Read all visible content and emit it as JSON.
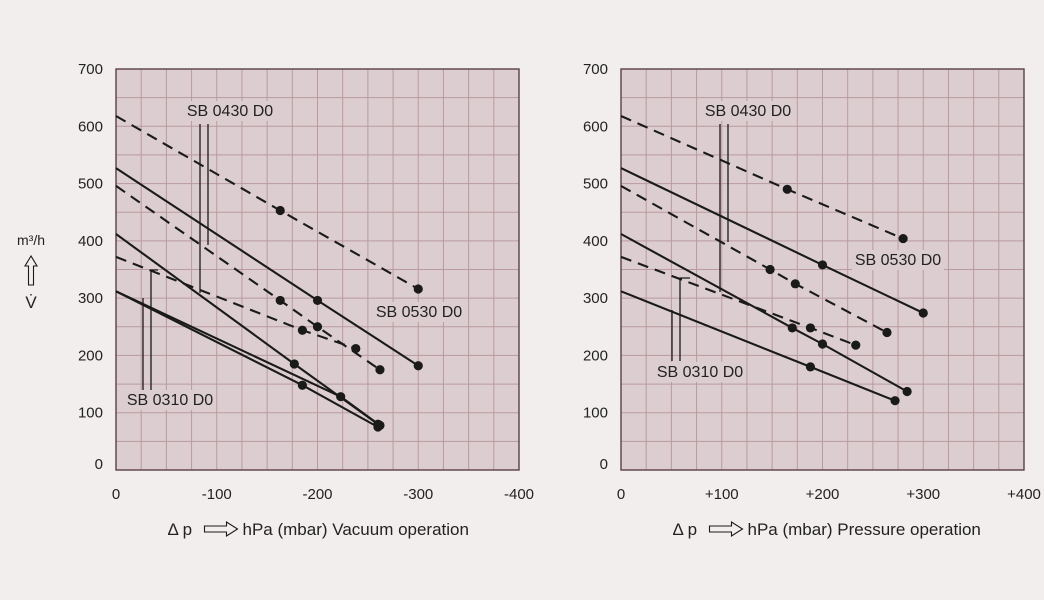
{
  "colors": {
    "background": "#f3eeee",
    "plot_bg": "#dcced0",
    "grid": "#b99aa0",
    "frame": "#5a4045",
    "ink": "#1a1a1a"
  },
  "y_axis": {
    "unit": "m³/h",
    "symbol": "V̇",
    "arrow_icon": "hollow-up-arrow"
  },
  "chart_data": [
    {
      "type": "line",
      "title": "",
      "xlabel": "hPa (mbar) Vacuum operation",
      "xlabel_prefix": "Δ p",
      "ylabel": "m³/h",
      "x_ticks": [
        "0",
        "-100",
        "-200",
        "-300",
        "-400"
      ],
      "y_ticks": [
        "0",
        "100",
        "200",
        "300",
        "400",
        "500",
        "600",
        "700"
      ],
      "xlim": [
        0,
        -400
      ],
      "ylim": [
        0,
        700
      ],
      "grid": true,
      "series": [
        {
          "style": "dashed",
          "x": [
            0,
            -163,
            -300
          ],
          "y": [
            618,
            453,
            316
          ]
        },
        {
          "style": "solid",
          "x": [
            0,
            -200,
            -300
          ],
          "y": [
            527,
            296,
            182
          ]
        },
        {
          "style": "dashed",
          "x": [
            0,
            -163,
            -200,
            -262
          ],
          "y": [
            496,
            296,
            250,
            175
          ]
        },
        {
          "style": "solid",
          "x": [
            0,
            -177,
            -260
          ],
          "y": [
            412,
            185,
            80
          ]
        },
        {
          "style": "dashed",
          "x": [
            0,
            -185,
            -238
          ],
          "y": [
            372,
            244,
            212
          ]
        },
        {
          "style": "solid",
          "x": [
            0,
            -223,
            -262
          ],
          "y": [
            312,
            128,
            78
          ]
        },
        {
          "style": "solid",
          "x": [
            0,
            -185,
            -260
          ],
          "y": [
            312,
            148,
            75
          ]
        }
      ],
      "annotations": [
        {
          "text": "SB 0430 D0",
          "target": {
            "x": -90,
            "y": 310
          }
        },
        {
          "text": "SB 0530 D0",
          "target": {
            "x": -300,
            "y": 316
          }
        },
        {
          "text": "SB 0310 D0",
          "target": {
            "x": -27,
            "y": 180
          }
        }
      ]
    },
    {
      "type": "line",
      "title": "",
      "xlabel": "hPa (mbar) Pressure operation",
      "xlabel_prefix": "Δ p",
      "ylabel": "m³/h",
      "x_ticks": [
        "0",
        "+100",
        "+200",
        "+300",
        "+400"
      ],
      "y_ticks": [
        "0",
        "100",
        "200",
        "300",
        "400",
        "500",
        "600",
        "700"
      ],
      "xlim": [
        0,
        400
      ],
      "ylim": [
        0,
        700
      ],
      "grid": true,
      "series": [
        {
          "style": "dashed",
          "x": [
            0,
            165,
            280
          ],
          "y": [
            618,
            490,
            404
          ]
        },
        {
          "style": "solid",
          "x": [
            0,
            200,
            300
          ],
          "y": [
            527,
            358,
            274
          ]
        },
        {
          "style": "dashed",
          "x": [
            0,
            148,
            173,
            264
          ],
          "y": [
            496,
            350,
            325,
            240
          ]
        },
        {
          "style": "solid",
          "x": [
            0,
            170,
            200,
            284
          ],
          "y": [
            412,
            248,
            220,
            137
          ]
        },
        {
          "style": "dashed",
          "x": [
            0,
            188,
            233
          ],
          "y": [
            372,
            248,
            218
          ]
        },
        {
          "style": "solid",
          "x": [
            0,
            188,
            272
          ],
          "y": [
            312,
            180,
            121
          ]
        }
      ],
      "annotations": [
        {
          "text": "SB 0430 D0",
          "target": {
            "x": 100,
            "y": 350
          }
        },
        {
          "text": "SB 0530 D0",
          "target": {
            "x": 300,
            "y": 274
          }
        },
        {
          "text": "SB 0310 D0",
          "target": {
            "x": 50,
            "y": 280
          }
        }
      ]
    }
  ]
}
